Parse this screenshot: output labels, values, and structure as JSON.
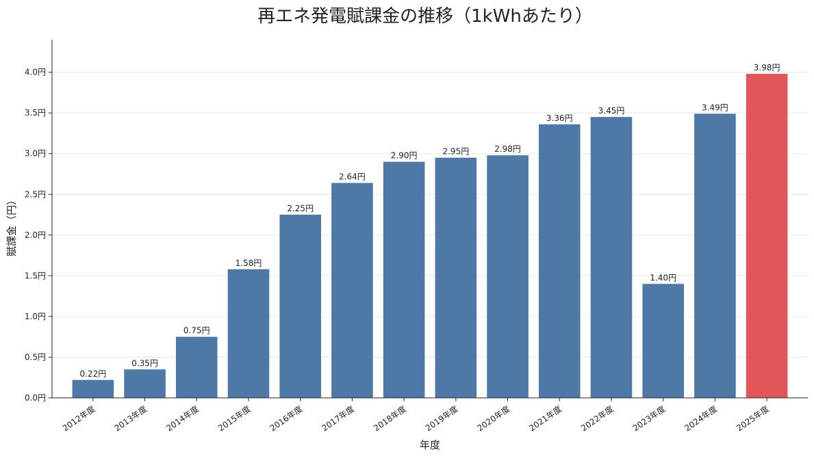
{
  "chart_data": {
    "type": "bar",
    "title": "再エネ発電賦課金の推移（1kWhあたり）",
    "xlabel": "年度",
    "ylabel": "賦課金（円）",
    "categories": [
      "2012年度",
      "2013年度",
      "2014年度",
      "2015年度",
      "2016年度",
      "2017年度",
      "2018年度",
      "2019年度",
      "2020年度",
      "2021年度",
      "2022年度",
      "2023年度",
      "2024年度",
      "2025年度"
    ],
    "values": [
      0.22,
      0.35,
      0.75,
      1.58,
      2.25,
      2.64,
      2.9,
      2.95,
      2.98,
      3.36,
      3.45,
      1.4,
      3.49,
      3.98
    ],
    "value_labels": [
      "0.22円",
      "0.35円",
      "0.75円",
      "1.58円",
      "2.25円",
      "2.64円",
      "2.90円",
      "2.95円",
      "2.98円",
      "3.36円",
      "3.45円",
      "1.40円",
      "3.49円",
      "3.98円"
    ],
    "yticks": [
      0.0,
      0.5,
      1.0,
      1.5,
      2.0,
      2.5,
      3.0,
      3.5,
      4.0
    ],
    "ytick_labels": [
      "0.0円",
      "0.5円",
      "1.0円",
      "1.5円",
      "2.0円",
      "2.5円",
      "3.0円",
      "3.5円",
      "4.0円"
    ],
    "ylim": [
      0,
      4.4
    ],
    "grid": "horizontal",
    "bar_color": "#4e79a7",
    "highlight_color": "#e15759",
    "highlight_index": 13
  }
}
